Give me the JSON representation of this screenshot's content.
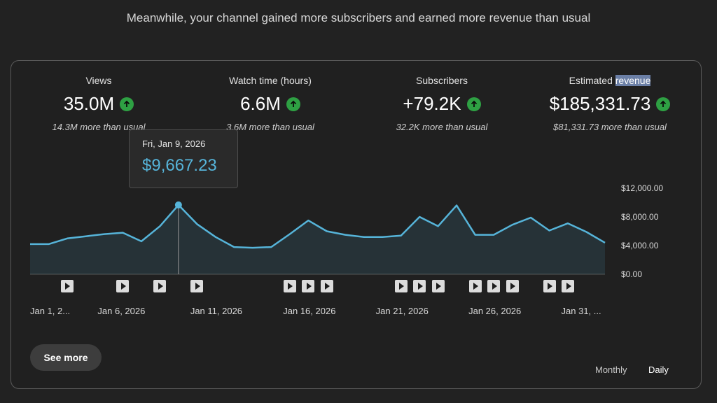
{
  "headline": "Meanwhile, your channel gained more subscribers and earned more revenue than usual",
  "metrics": [
    {
      "label": "Views",
      "value": "35.0M",
      "sub": "14.3M more than usual"
    },
    {
      "label": "Watch time (hours)",
      "value": "6.6M",
      "sub": "3.6M more than usual"
    },
    {
      "label": "Subscribers",
      "value": "+79.2K",
      "sub": "32.2K more than usual"
    },
    {
      "label_a": "Estimated ",
      "label_b": "revenue",
      "value": "$185,331.73",
      "sub": "$81,331.73 more than usual"
    }
  ],
  "tooltip": {
    "date": "Fri, Jan 9, 2026",
    "amount": "$9,667.23"
  },
  "chart_data": {
    "type": "area",
    "title": "Estimated revenue (Daily)",
    "x_labels": [
      "Jan 1, 2...",
      "Jan 6, 2026",
      "Jan 11, 2026",
      "Jan 16, 2026",
      "Jan 21, 2026",
      "Jan 26, 2026",
      "Jan 31, ..."
    ],
    "x_label_days": [
      1,
      6,
      11,
      16,
      21,
      26,
      31
    ],
    "days": [
      1,
      2,
      3,
      4,
      5,
      6,
      7,
      8,
      9,
      10,
      11,
      12,
      13,
      14,
      15,
      16,
      17,
      18,
      19,
      20,
      21,
      22,
      23,
      24,
      25,
      26,
      27,
      28,
      29,
      30,
      31,
      32
    ],
    "values": [
      4200,
      4200,
      5000,
      5300,
      5600,
      5800,
      4600,
      6700,
      9667,
      7000,
      5200,
      3800,
      3700,
      3800,
      5600,
      7500,
      6000,
      5500,
      5200,
      5200,
      5400,
      8000,
      6700,
      9600,
      5500,
      5500,
      6900,
      7900,
      6100,
      7100,
      5900,
      4400
    ],
    "ylim": [
      0,
      12000
    ],
    "y_ticks": [
      "$12,000.00",
      "$8,000.00",
      "$4,000.00",
      "$0.00"
    ],
    "y_tick_values": [
      12000,
      8000,
      4000,
      0
    ],
    "highlight_day": 9,
    "video_markers": [
      3,
      6,
      8,
      10,
      15,
      16,
      17,
      21,
      22,
      23,
      25,
      26,
      27,
      29,
      30
    ],
    "line_color": "#56b4d9"
  },
  "actions": {
    "see_more": "See more",
    "monthly": "Monthly",
    "daily": "Daily"
  }
}
